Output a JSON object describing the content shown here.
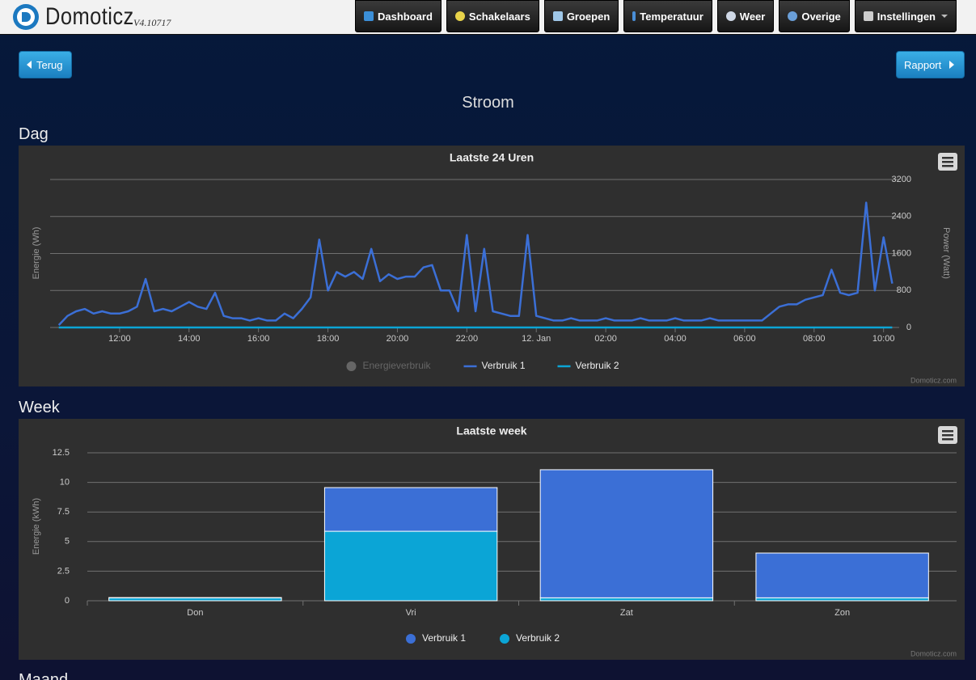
{
  "header": {
    "logo": "Domoticz",
    "version": "V4.10717"
  },
  "nav": [
    "Dashboard",
    "Schakelaars",
    "Groepen",
    "Temperatuur",
    "Weer",
    "Overige",
    "Instellingen"
  ],
  "buttons": {
    "back": "Terug",
    "report": "Rapport"
  },
  "page_title": "Stroom",
  "sections": [
    "Dag",
    "Week",
    "Maand"
  ],
  "chart_data": [
    {
      "type": "line",
      "title": "Laatste 24 Uren",
      "y_label": "Energie (Wh)",
      "y2_label": "Power (Watt)",
      "credits": "Domoticz.com",
      "xlim": [
        10,
        34.45
      ],
      "xticks": [
        {
          "value": 12,
          "label": "12:00"
        },
        {
          "value": 14,
          "label": "14:00"
        },
        {
          "value": 16,
          "label": "16:00"
        },
        {
          "value": 18,
          "label": "18:00"
        },
        {
          "value": 20,
          "label": "20:00"
        },
        {
          "value": 22,
          "label": "22:00"
        },
        {
          "value": 24,
          "label": "12. Jan"
        },
        {
          "value": 26,
          "label": "02:00"
        },
        {
          "value": 28,
          "label": "04:00"
        },
        {
          "value": 30,
          "label": "06:00"
        },
        {
          "value": 32,
          "label": "08:00"
        },
        {
          "value": 34,
          "label": "10:00"
        }
      ],
      "y2lim": [
        0,
        3200
      ],
      "y2ticks": [
        0,
        800,
        1600,
        2400,
        3200
      ],
      "grid": true,
      "x": [
        10.25,
        10.5,
        10.75,
        11,
        11.25,
        11.5,
        11.75,
        12,
        12.25,
        12.5,
        12.75,
        13,
        13.25,
        13.5,
        13.75,
        14,
        14.25,
        14.5,
        14.75,
        15,
        15.25,
        15.5,
        15.75,
        16,
        16.25,
        16.5,
        16.75,
        17,
        17.25,
        17.5,
        17.75,
        18,
        18.25,
        18.5,
        18.75,
        19,
        19.25,
        19.5,
        19.75,
        20,
        20.25,
        20.5,
        20.75,
        21,
        21.25,
        21.5,
        21.75,
        22,
        22.25,
        22.5,
        22.75,
        23,
        23.25,
        23.5,
        23.75,
        24,
        24.25,
        24.5,
        24.75,
        25,
        25.25,
        25.5,
        25.75,
        26,
        26.25,
        26.5,
        26.75,
        27,
        27.25,
        27.5,
        27.75,
        28,
        28.25,
        28.5,
        28.75,
        29,
        29.25,
        29.5,
        29.75,
        30,
        30.25,
        30.5,
        30.75,
        31,
        31.25,
        31.5,
        31.75,
        32,
        32.25,
        32.5,
        32.75,
        33,
        33.25,
        33.5,
        33.75,
        34,
        34.25
      ],
      "series": [
        {
          "name": "Energieverbruik",
          "color": "#666666",
          "visible": false
        },
        {
          "name": "Verbruik 1",
          "color": "#3b6fd6",
          "axis": "y2",
          "values": [
            50,
            250,
            350,
            400,
            300,
            350,
            300,
            300,
            350,
            450,
            1050,
            350,
            400,
            350,
            450,
            550,
            450,
            400,
            750,
            250,
            200,
            200,
            150,
            200,
            150,
            150,
            300,
            200,
            400,
            650,
            1900,
            800,
            1200,
            1100,
            1200,
            1050,
            1700,
            1000,
            1150,
            1050,
            1100,
            1100,
            1300,
            1350,
            800,
            800,
            350,
            2000,
            350,
            1700,
            350,
            300,
            250,
            250,
            2000,
            250,
            200,
            150,
            150,
            200,
            150,
            150,
            150,
            200,
            150,
            150,
            150,
            200,
            150,
            150,
            150,
            200,
            150,
            150,
            150,
            200,
            150,
            150,
            150,
            150,
            150,
            150,
            300,
            450,
            500,
            500,
            600,
            650,
            700,
            1250,
            750,
            700,
            750,
            2700,
            800,
            1950,
            950
          ]
        },
        {
          "name": "Verbruik 2",
          "color": "#0ba5d6",
          "axis": "y2",
          "values": [
            0,
            0,
            0,
            0,
            0,
            0,
            0,
            0,
            0,
            0,
            0,
            0,
            0,
            0,
            0,
            0,
            0,
            0,
            0,
            0,
            0,
            0,
            0,
            0,
            0,
            0,
            0,
            0,
            0,
            0,
            0,
            0,
            0,
            0,
            0,
            0,
            0,
            0,
            0,
            0,
            0,
            0,
            0,
            0,
            0,
            0,
            0,
            0,
            0,
            0,
            0,
            0,
            0,
            0,
            0,
            0,
            0,
            0,
            0,
            0,
            0,
            0,
            0,
            0,
            0,
            0,
            0,
            0,
            0,
            0,
            0,
            0,
            0,
            0,
            0,
            0,
            0,
            0,
            0,
            0,
            0,
            0,
            0,
            0,
            0,
            0,
            0,
            0,
            0,
            0,
            0,
            0,
            0,
            0,
            0,
            0,
            0
          ]
        }
      ]
    },
    {
      "type": "bar",
      "stacked": true,
      "title": "Laatste week",
      "y_label": "Energie (kWh)",
      "credits": "Domoticz.com",
      "categories": [
        "Don",
        "Vri",
        "Zat",
        "Zon"
      ],
      "ylim": [
        0,
        12.5
      ],
      "yticks": [
        0,
        2.5,
        5,
        7.5,
        10,
        12.5
      ],
      "grid": true,
      "series": [
        {
          "name": "Verbruik 1",
          "color": "#3b6fd6",
          "values": [
            0.02,
            3.69,
            10.82,
            3.78
          ]
        },
        {
          "name": "Verbruik 2",
          "color": "#0ba5d6",
          "values": [
            0.25,
            5.87,
            0.25,
            0.25
          ]
        }
      ]
    }
  ]
}
